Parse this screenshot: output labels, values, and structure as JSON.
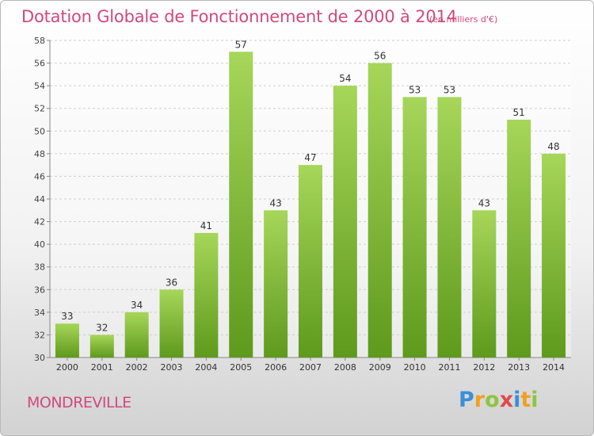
{
  "title": "Dotation Globale de Fonctionnement de 2000 à 2014",
  "subtitle": "(en milliers d'€)",
  "commune": "MONDREVILLE",
  "logo": {
    "letters": [
      "P",
      "r",
      "o",
      "x",
      "i",
      "t",
      "i"
    ],
    "colors": [
      "#3a8fd8",
      "#f0a020",
      "#8cc63f",
      "#e04a4a",
      "#3a8fd8",
      "#f0a020",
      "#8cc63f"
    ]
  },
  "colors": {
    "bar": "#7cbf2e",
    "bar_light": "#a6d65a",
    "bar_dark": "#5e9a1c",
    "text_accent": "#d04a7a"
  },
  "chart_data": {
    "type": "bar",
    "categories": [
      "2000",
      "2001",
      "2002",
      "2003",
      "2004",
      "2005",
      "2006",
      "2007",
      "2008",
      "2009",
      "2010",
      "2011",
      "2012",
      "2013",
      "2014"
    ],
    "values": [
      33,
      32,
      34,
      36,
      41,
      57,
      43,
      47,
      54,
      56,
      53,
      53,
      43,
      51,
      48
    ],
    "ylim": [
      30,
      58
    ],
    "yticks": [
      30,
      32,
      34,
      36,
      38,
      40,
      42,
      44,
      46,
      48,
      50,
      52,
      54,
      56,
      58
    ],
    "grid": true
  }
}
